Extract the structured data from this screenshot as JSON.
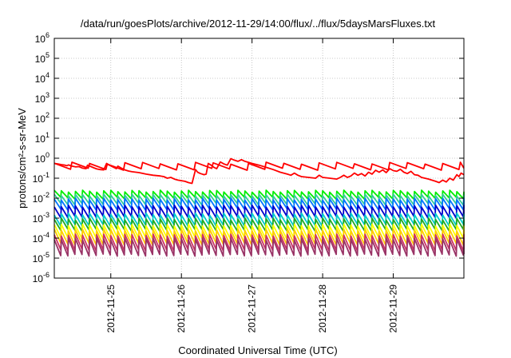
{
  "chart_data": {
    "type": "line",
    "title": "/data/run/goesPlots/archive/2012-11-29/14:00/flux/../flux/5daysMarsFluxes.txt",
    "xlabel": "Coordinated Universal Time (UTC)",
    "ylabel": "protons/cm²-s-sr-MeV",
    "y_scale": "log",
    "ylim": [
      1e-06,
      1000000.0
    ],
    "xlim": [
      0,
      5.8
    ],
    "grid": true,
    "y_ticks": [
      {
        "base": "10",
        "exp": "-6",
        "value": 1e-06
      },
      {
        "base": "10",
        "exp": "-5",
        "value": 1e-05
      },
      {
        "base": "10",
        "exp": "-4",
        "value": 0.0001
      },
      {
        "base": "10",
        "exp": "-3",
        "value": 0.001
      },
      {
        "base": "10",
        "exp": "-2",
        "value": 0.01
      },
      {
        "base": "10",
        "exp": "-1",
        "value": 0.1
      },
      {
        "base": "10",
        "exp": "0",
        "value": 1
      },
      {
        "base": "10",
        "exp": "1",
        "value": 10
      },
      {
        "base": "10",
        "exp": "2",
        "value": 100
      },
      {
        "base": "10",
        "exp": "3",
        "value": 1000
      },
      {
        "base": "10",
        "exp": "4",
        "value": 10000
      },
      {
        "base": "10",
        "exp": "5",
        "value": 100000
      },
      {
        "base": "10",
        "exp": "6",
        "value": 1000000
      }
    ],
    "x_ticks": [
      {
        "label": "2012-11-25",
        "value": 0.8
      },
      {
        "label": "2012-11-26",
        "value": 1.8
      },
      {
        "label": "2012-11-27",
        "value": 2.8
      },
      {
        "label": "2012-11-28",
        "value": 3.8
      },
      {
        "label": "2012-11-29",
        "value": 4.8
      }
    ],
    "series": [
      {
        "color": "#ff0000",
        "kind": "sawtooth",
        "period": 0.25,
        "low_exp": -0.55,
        "high_exp": -0.25
      },
      {
        "color": "#00ee00",
        "kind": "sawtooth",
        "period": 0.1,
        "low_exp": -2.0,
        "high_exp": -1.65
      },
      {
        "color": "#33cc99",
        "kind": "sawtooth",
        "period": 0.1,
        "low_exp": -2.3,
        "high_exp": -1.85
      },
      {
        "color": "#0077ff",
        "kind": "sawtooth",
        "period": 0.1,
        "low_exp": -2.55,
        "high_exp": -2.05
      },
      {
        "color": "#0000cc",
        "kind": "sawtooth",
        "period": 0.1,
        "low_exp": -2.95,
        "high_exp": -2.4
      },
      {
        "color": "#00cccc",
        "kind": "sawtooth",
        "period": 0.1,
        "low_exp": -3.35,
        "high_exp": -2.8
      },
      {
        "color": "#22aa22",
        "kind": "sawtooth",
        "period": 0.1,
        "low_exp": -3.6,
        "high_exp": -3.05
      },
      {
        "color": "#ffff00",
        "kind": "sawtooth",
        "period": 0.1,
        "low_exp": -4.0,
        "high_exp": -3.35
      },
      {
        "color": "#ffcc00",
        "kind": "sawtooth",
        "period": 0.1,
        "low_exp": -4.3,
        "high_exp": -3.6
      },
      {
        "color": "#cc3366",
        "kind": "sawtooth",
        "period": 0.1,
        "low_exp": -4.6,
        "high_exp": -3.85
      },
      {
        "color": "#993366",
        "kind": "sawtooth",
        "period": 0.1,
        "low_exp": -4.85,
        "high_exp": -4.05
      }
    ],
    "red_series": [
      [
        0.0,
        0.55
      ],
      [
        0.05,
        0.52
      ],
      [
        0.1,
        0.48
      ],
      [
        0.15,
        0.45
      ],
      [
        0.18,
        0.42
      ],
      [
        0.2,
        0.46
      ],
      [
        0.25,
        0.4
      ],
      [
        0.3,
        0.37
      ],
      [
        0.35,
        0.38
      ],
      [
        0.4,
        0.32
      ],
      [
        0.45,
        0.3
      ],
      [
        0.47,
        0.45
      ],
      [
        0.52,
        0.38
      ],
      [
        0.56,
        0.33
      ],
      [
        0.6,
        0.29
      ],
      [
        0.65,
        0.27
      ],
      [
        0.7,
        0.26
      ],
      [
        0.74,
        0.55
      ],
      [
        0.78,
        0.45
      ],
      [
        0.82,
        0.38
      ],
      [
        0.88,
        0.3
      ],
      [
        0.9,
        0.4
      ],
      [
        0.95,
        0.32
      ],
      [
        1.0,
        0.26
      ],
      [
        1.05,
        0.23
      ],
      [
        1.1,
        0.21
      ],
      [
        1.2,
        0.19
      ],
      [
        1.3,
        0.16
      ],
      [
        1.4,
        0.14
      ],
      [
        1.5,
        0.13
      ],
      [
        1.55,
        0.12
      ],
      [
        1.6,
        0.1
      ],
      [
        1.65,
        0.11
      ],
      [
        1.7,
        0.09
      ],
      [
        1.75,
        0.08
      ],
      [
        1.8,
        0.075
      ],
      [
        1.85,
        0.07
      ],
      [
        1.9,
        0.06
      ],
      [
        1.95,
        0.055
      ],
      [
        2.0,
        0.27
      ],
      [
        2.03,
        0.2
      ],
      [
        2.07,
        0.17
      ],
      [
        2.12,
        0.15
      ],
      [
        2.15,
        0.16
      ],
      [
        2.18,
        0.55
      ],
      [
        2.22,
        0.45
      ],
      [
        2.26,
        0.35
      ],
      [
        2.3,
        0.3
      ],
      [
        2.35,
        0.65
      ],
      [
        2.4,
        0.52
      ],
      [
        2.45,
        0.45
      ],
      [
        2.5,
        0.95
      ],
      [
        2.55,
        0.8
      ],
      [
        2.6,
        0.7
      ],
      [
        2.65,
        0.85
      ],
      [
        2.7,
        0.7
      ],
      [
        2.8,
        0.55
      ],
      [
        2.9,
        0.45
      ],
      [
        3.0,
        0.35
      ],
      [
        3.1,
        0.27
      ],
      [
        3.2,
        0.2
      ],
      [
        3.3,
        0.16
      ],
      [
        3.35,
        0.14
      ],
      [
        3.4,
        0.18
      ],
      [
        3.45,
        0.14
      ],
      [
        3.5,
        0.12
      ],
      [
        3.6,
        0.11
      ],
      [
        3.7,
        0.1
      ],
      [
        3.75,
        0.14
      ],
      [
        3.8,
        0.11
      ],
      [
        3.9,
        0.1
      ],
      [
        4.0,
        0.09
      ],
      [
        4.05,
        0.11
      ],
      [
        4.1,
        0.14
      ],
      [
        4.15,
        0.11
      ],
      [
        4.2,
        0.13
      ],
      [
        4.25,
        0.18
      ],
      [
        4.3,
        0.14
      ],
      [
        4.35,
        0.17
      ],
      [
        4.4,
        0.13
      ],
      [
        4.45,
        0.2
      ],
      [
        4.5,
        0.16
      ],
      [
        4.55,
        0.25
      ],
      [
        4.6,
        0.2
      ],
      [
        4.65,
        0.26
      ],
      [
        4.7,
        0.19
      ],
      [
        4.75,
        0.3
      ],
      [
        4.8,
        0.24
      ],
      [
        4.85,
        0.22
      ],
      [
        4.9,
        0.28
      ],
      [
        4.95,
        0.2
      ],
      [
        5.0,
        0.17
      ],
      [
        5.05,
        0.22
      ],
      [
        5.1,
        0.15
      ],
      [
        5.15,
        0.14
      ],
      [
        5.2,
        0.11
      ],
      [
        5.3,
        0.09
      ],
      [
        5.4,
        0.07
      ],
      [
        5.45,
        0.06
      ],
      [
        5.5,
        0.08
      ],
      [
        5.55,
        0.065
      ],
      [
        5.6,
        0.1
      ],
      [
        5.65,
        0.08
      ],
      [
        5.7,
        0.15
      ],
      [
        5.73,
        0.12
      ],
      [
        5.76,
        0.18
      ],
      [
        5.8,
        0.15
      ]
    ]
  }
}
